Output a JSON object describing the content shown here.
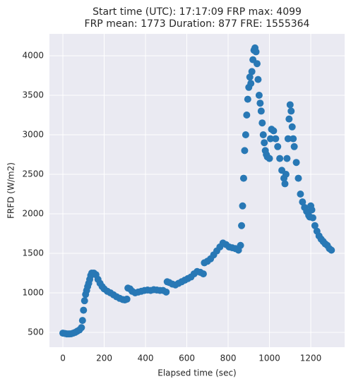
{
  "chart_data": {
    "type": "scatter",
    "title": [
      "Start time (UTC): 17:17:09 FRP max: 4099",
      "FRP mean: 1773 Duration: 877 FRE: 1555364"
    ],
    "x_label": "Elapsed time (sec)",
    "y_label": "FRFD (W/m2)",
    "color": "#2878b5",
    "grid": true,
    "xlim": [
      -65,
      1364
    ],
    "ylim": [
      312,
      4277
    ],
    "xticks": [
      0,
      200,
      400,
      600,
      800,
      1000,
      1200
    ],
    "yticks": [
      500,
      1000,
      1500,
      2000,
      2500,
      3000,
      3500,
      4000
    ],
    "x": [
      0,
      10,
      20,
      30,
      40,
      50,
      60,
      70,
      80,
      90,
      95,
      100,
      105,
      110,
      115,
      120,
      125,
      130,
      135,
      140,
      150,
      160,
      170,
      180,
      190,
      200,
      215,
      230,
      245,
      260,
      275,
      290,
      300,
      310,
      315,
      325,
      335,
      350,
      365,
      380,
      395,
      410,
      425,
      440,
      455,
      470,
      485,
      500,
      505,
      515,
      530,
      545,
      560,
      575,
      590,
      605,
      620,
      635,
      650,
      665,
      680,
      685,
      700,
      715,
      730,
      745,
      760,
      775,
      790,
      805,
      820,
      835,
      850,
      860,
      865,
      870,
      875,
      880,
      885,
      890,
      895,
      900,
      905,
      910,
      915,
      920,
      925,
      930,
      935,
      940,
      945,
      950,
      955,
      960,
      965,
      970,
      975,
      980,
      985,
      990,
      1000,
      1005,
      1010,
      1020,
      1030,
      1040,
      1050,
      1060,
      1070,
      1075,
      1080,
      1085,
      1090,
      1095,
      1100,
      1105,
      1110,
      1115,
      1120,
      1130,
      1140,
      1150,
      1160,
      1170,
      1180,
      1190,
      1195,
      1200,
      1205,
      1210,
      1220,
      1230,
      1240,
      1250,
      1260,
      1270,
      1280,
      1290,
      1300
    ],
    "values": [
      490,
      485,
      480,
      480,
      482,
      490,
      500,
      515,
      530,
      560,
      650,
      780,
      900,
      980,
      1030,
      1080,
      1120,
      1170,
      1220,
      1250,
      1250,
      1230,
      1170,
      1120,
      1080,
      1050,
      1020,
      1000,
      975,
      950,
      930,
      915,
      910,
      920,
      1060,
      1050,
      1020,
      1000,
      1010,
      1020,
      1030,
      1035,
      1030,
      1040,
      1035,
      1030,
      1030,
      1010,
      1140,
      1130,
      1110,
      1100,
      1120,
      1140,
      1160,
      1180,
      1200,
      1240,
      1270,
      1260,
      1240,
      1380,
      1400,
      1430,
      1480,
      1530,
      1580,
      1630,
      1610,
      1580,
      1570,
      1560,
      1540,
      1600,
      1850,
      2100,
      2450,
      2800,
      3000,
      3250,
      3450,
      3600,
      3730,
      3650,
      3800,
      3950,
      4070,
      4099,
      4050,
      3900,
      3700,
      3500,
      3400,
      3300,
      3150,
      3000,
      2900,
      2800,
      2750,
      2720,
      2700,
      2950,
      3070,
      3050,
      2950,
      2850,
      2700,
      2550,
      2450,
      2380,
      2500,
      2700,
      2950,
      3200,
      3380,
      3300,
      3100,
      2950,
      2850,
      2650,
      2450,
      2250,
      2150,
      2080,
      2030,
      1980,
      1960,
      2100,
      2050,
      1950,
      1850,
      1780,
      1720,
      1680,
      1650,
      1620,
      1600,
      1560,
      1540
    ]
  }
}
